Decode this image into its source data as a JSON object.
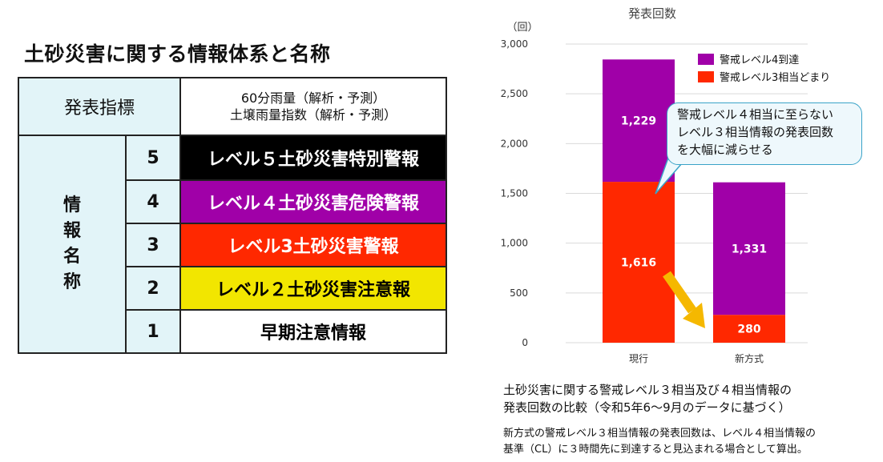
{
  "left": {
    "title": "土砂災害に関する情報体系と名称",
    "header_label": "発表指標",
    "header_desc_line1": "60分雨量（解析・予測）",
    "header_desc_line2": "土壌雨量指数（解析・予測）",
    "vertical_label": [
      "情",
      "報",
      "名",
      "称"
    ],
    "levels": [
      {
        "num": "5",
        "name": "レベル５土砂災害特別警報",
        "bg": "#000000",
        "fg": "#ffffff"
      },
      {
        "num": "4",
        "name": "レベル４土砂災害危険警報",
        "bg": "#a000a8",
        "fg": "#ffffff"
      },
      {
        "num": "3",
        "name": "レベル3土砂災害警報",
        "bg": "#ff2800",
        "fg": "#ffffff"
      },
      {
        "num": "2",
        "name": "レベル２土砂災害注意報",
        "bg": "#f2e600",
        "fg": "#000000"
      },
      {
        "num": "1",
        "name": "早期注意情報",
        "bg": "#ffffff",
        "fg": "#000000"
      }
    ]
  },
  "chart_data": {
    "type": "bar",
    "stacked": true,
    "title": "発表回数",
    "ylabel": "（回）",
    "ylim": [
      0,
      3000
    ],
    "yticks": [
      "0",
      "500",
      "1,000",
      "1,500",
      "2,000",
      "2,500",
      "3,000"
    ],
    "categories": [
      "現行",
      "新方式"
    ],
    "series": [
      {
        "name": "警戒レベル3相当どまり",
        "color": "#ff2800",
        "values": [
          1616,
          280
        ],
        "labels": [
          "1,616",
          "280"
        ]
      },
      {
        "name": "警戒レベル4到達",
        "color": "#a000a8",
        "values": [
          1229,
          1331
        ],
        "labels": [
          "1,229",
          "1,331"
        ]
      }
    ],
    "legend_position": "top-right",
    "grid": true,
    "annotation": {
      "line1": "警戒レベル４相当に至らない",
      "line2": "レベル３相当情報の発表回数",
      "line3": "を大幅に減らせる"
    },
    "arrow_color": "#f5b800"
  },
  "captions": {
    "line1": "土砂災害に関する警戒レベル３相当及び４相当情報の",
    "line2": "発表回数の比較（令和5年6～9月のデータに基づく）",
    "note1": "新方式の警戒レベル３相当情報の発表回数は、レベル４相当情報の",
    "note2": "基準（CL）に３時間先に到達すると見込まれる場合として算出。"
  },
  "colors": {
    "light_cyan": "#e2f4f8",
    "callout_border": "#3aa3c8"
  }
}
